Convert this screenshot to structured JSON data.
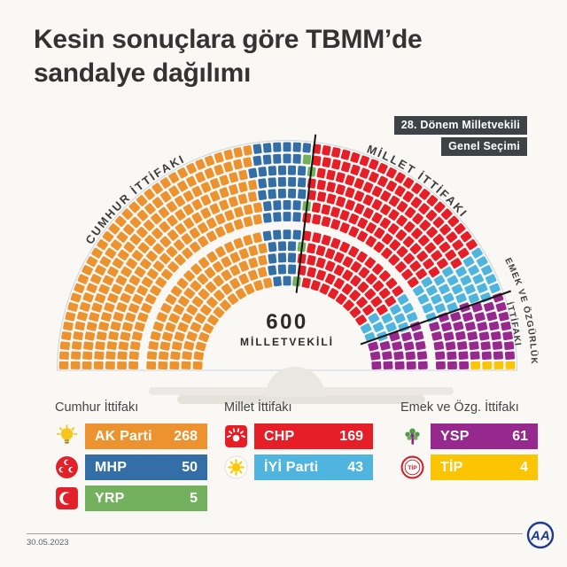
{
  "header": {
    "title_line1": "Kesin sonuçlara göre TBMM’de",
    "title_line2": "sandalye dağılımı"
  },
  "badge": {
    "line1": "28. Dönem Milletvekili",
    "line2": "Genel Seçimi"
  },
  "center_label": {
    "value": "600",
    "caption": "MİLLETVEKİLİ"
  },
  "footer": {
    "date": "30.05.2023",
    "logo_text": "AA"
  },
  "chart_data": {
    "type": "parliament-hemicycle",
    "total_seats": 600,
    "seat_rows": 12,
    "alliances": [
      {
        "name": "Cumhur İttifakı",
        "arc_label": "CUMHUR İTTİFAKI",
        "parties": [
          {
            "name": "AK Parti",
            "seats": 268,
            "color": "#EC9330",
            "icon": "akp-lightbulb"
          },
          {
            "name": "MHP",
            "seats": 50,
            "color": "#336FA6",
            "icon": "mhp-crescents"
          },
          {
            "name": "YRP",
            "seats": 5,
            "color": "#74B15E",
            "icon": "yrp-crescent"
          }
        ]
      },
      {
        "name": "Millet İttifakı",
        "arc_label": "MİLLET İTTİFAKI",
        "parties": [
          {
            "name": "CHP",
            "seats": 169,
            "color": "#E61E27",
            "icon": "chp-sun"
          },
          {
            "name": "İYİ Parti",
            "seats": 43,
            "color": "#4FB5DE",
            "icon": "iyi-sun"
          }
        ]
      },
      {
        "name": "Emek ve Özg. İttifakı",
        "arc_label_line1": "EMEK VE ÖZGÜRLÜK",
        "arc_label_line2": "İTTİFAKI",
        "parties": [
          {
            "name": "YSP",
            "seats": 61,
            "color": "#97288E",
            "icon": "ysp-tree"
          },
          {
            "name": "TİP",
            "seats": 4,
            "color": "#FBC504",
            "icon": "tip-badge"
          }
        ]
      }
    ]
  }
}
